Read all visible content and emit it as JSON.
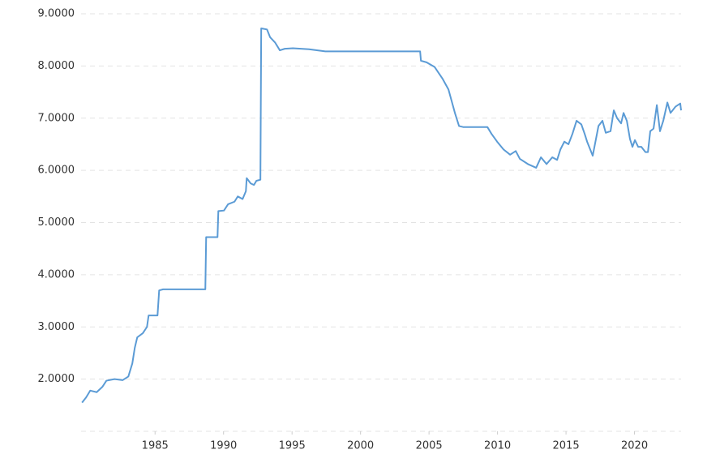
{
  "chart_data": {
    "type": "line",
    "x": [
      1979.67,
      1979.97,
      1980.27,
      1980.74,
      1981.15,
      1981.45,
      1982.04,
      1982.63,
      1983.05,
      1983.34,
      1983.52,
      1983.7,
      1984.11,
      1984.41,
      1984.53,
      1985.18,
      1985.3,
      1985.59,
      1988.67,
      1988.73,
      1989.56,
      1989.62,
      1990.03,
      1990.33,
      1990.8,
      1991.04,
      1991.39,
      1991.63,
      1991.69,
      1991.98,
      1992.22,
      1992.4,
      1992.69,
      1992.75,
      1993.17,
      1993.4,
      1993.76,
      1994.11,
      1994.47,
      1995.06,
      1996.24,
      1997.43,
      2004.35,
      2004.41,
      2004.82,
      2005.41,
      2006.0,
      2006.42,
      2006.89,
      2007.19,
      2007.49,
      2009.26,
      2009.56,
      2009.97,
      2010.44,
      2010.92,
      2011.33,
      2011.63,
      2012.22,
      2012.82,
      2013.17,
      2013.58,
      2014.0,
      2014.35,
      2014.59,
      2014.88,
      2015.18,
      2015.47,
      2015.77,
      2016.12,
      2016.36,
      2016.54,
      2016.95,
      2017.37,
      2017.66,
      2017.9,
      2018.25,
      2018.49,
      2018.73,
      2019.02,
      2019.2,
      2019.44,
      2019.67,
      2019.85,
      2020.03,
      2020.27,
      2020.5,
      2020.8,
      2020.98,
      2021.15,
      2021.39,
      2021.63,
      2021.86,
      2022.1,
      2022.4,
      2022.63,
      2022.99,
      2023.34,
      2023.4
    ],
    "series": [
      {
        "color": "#5b9bd5",
        "values": [
          1.55,
          1.65,
          1.78,
          1.75,
          1.85,
          1.97,
          2.0,
          1.98,
          2.05,
          2.3,
          2.6,
          2.8,
          2.88,
          3.0,
          3.22,
          3.22,
          3.7,
          3.72,
          3.72,
          4.72,
          4.72,
          5.22,
          5.23,
          5.35,
          5.4,
          5.5,
          5.45,
          5.6,
          5.85,
          5.75,
          5.72,
          5.8,
          5.82,
          8.72,
          8.7,
          8.55,
          8.45,
          8.3,
          8.33,
          8.34,
          8.32,
          8.28,
          8.28,
          8.1,
          8.07,
          7.98,
          7.75,
          7.55,
          7.1,
          6.85,
          6.83,
          6.83,
          6.7,
          6.55,
          6.4,
          6.3,
          6.37,
          6.22,
          6.12,
          6.05,
          6.25,
          6.12,
          6.25,
          6.2,
          6.4,
          6.55,
          6.5,
          6.7,
          6.95,
          6.88,
          6.7,
          6.55,
          6.28,
          6.85,
          6.95,
          6.72,
          6.75,
          7.15,
          7.0,
          6.9,
          7.1,
          6.95,
          6.6,
          6.45,
          6.58,
          6.45,
          6.45,
          6.35,
          6.35,
          6.75,
          6.8,
          7.25,
          6.75,
          6.95,
          7.3,
          7.1,
          7.22,
          7.28,
          7.15
        ]
      }
    ],
    "xlim": [
      1979.6,
      2023.4
    ],
    "xticks": [
      1985,
      1990,
      1995,
      2000,
      2005,
      2010,
      2015,
      2020
    ],
    "ylim": [
      1,
      9
    ],
    "yticks": [
      {
        "value": 2,
        "label": "2.0000"
      },
      {
        "value": 3,
        "label": "3.0000"
      },
      {
        "value": 4,
        "label": "4.0000"
      },
      {
        "value": 5,
        "label": "5.0000"
      },
      {
        "value": 6,
        "label": "6.0000"
      },
      {
        "value": 7,
        "label": "7.0000"
      },
      {
        "value": 8,
        "label": "8.0000"
      },
      {
        "value": 9,
        "label": "9.0000"
      }
    ],
    "grid": true
  }
}
